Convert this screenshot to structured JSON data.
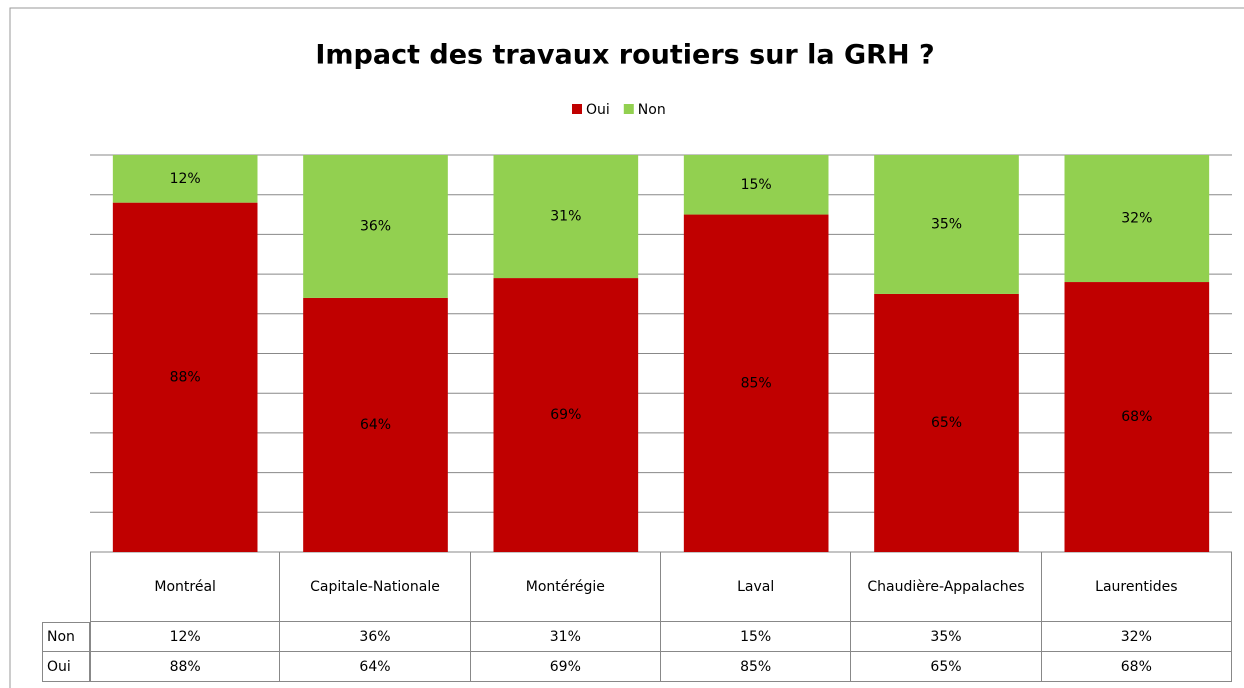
{
  "chart_data": {
    "type": "bar",
    "stacked": true,
    "title": "Impact des travaux routiers sur la GRH ?",
    "categories": [
      "Montréal",
      "Capitale-Nationale",
      "Montérégie",
      "Laval",
      "Chaudière-Appalaches",
      "Laurentides"
    ],
    "series": [
      {
        "name": "Oui",
        "color": "#c00000",
        "values": [
          88,
          64,
          69,
          85,
          65,
          68
        ],
        "value_labels": [
          "88%",
          "64%",
          "69%",
          "85%",
          "65%",
          "68%"
        ]
      },
      {
        "name": "Non",
        "color": "#92d050",
        "values": [
          12,
          36,
          31,
          15,
          35,
          32
        ],
        "value_labels": [
          "12%",
          "36%",
          "31%",
          "15%",
          "35%",
          "32%"
        ]
      }
    ],
    "table_order": [
      1,
      0
    ],
    "ylim": [
      0,
      100
    ],
    "yticks": [
      0,
      10,
      20,
      30,
      40,
      50,
      60,
      70,
      80,
      90,
      100
    ],
    "grid": true,
    "legend": "top"
  }
}
